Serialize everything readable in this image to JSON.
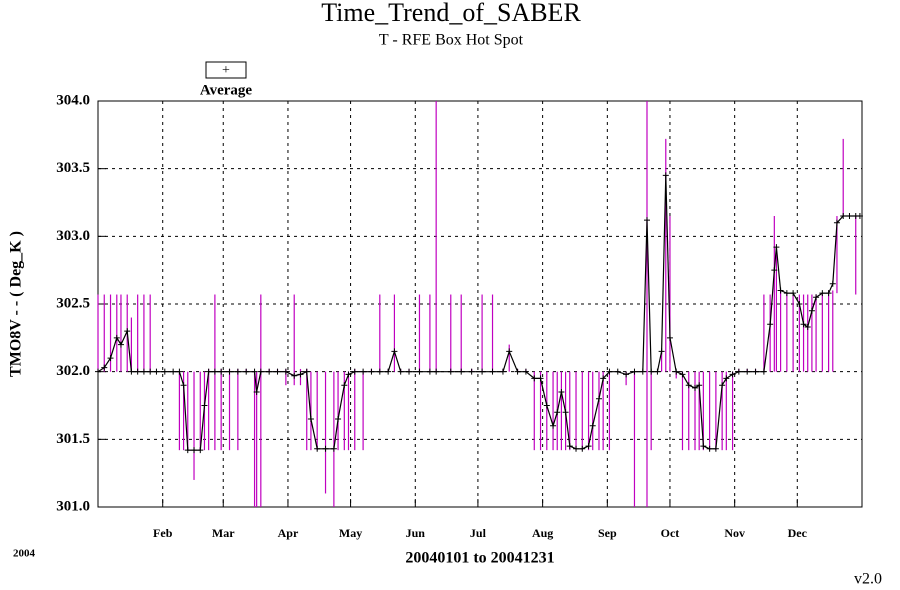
{
  "chart_data": {
    "type": "trend",
    "title": "Time_Trend_of_SABER",
    "subtitle": "T - RFE Box Hot Spot",
    "y_label": "TMO8V  - - ( Deg_K )",
    "x_label": "20040101 to 20041231",
    "year_note": "2004",
    "version": "v2.0",
    "xlim": [
      1,
      367
    ],
    "ylim": [
      301,
      304
    ],
    "grid": true,
    "xticks": [
      {
        "value": 32,
        "label": "Feb"
      },
      {
        "value": 61,
        "label": "Mar"
      },
      {
        "value": 92,
        "label": "Apr"
      },
      {
        "value": 122,
        "label": "May"
      },
      {
        "value": 153,
        "label": "Jun"
      },
      {
        "value": 183,
        "label": "Jul"
      },
      {
        "value": 214,
        "label": "Aug"
      },
      {
        "value": 245,
        "label": "Sep"
      },
      {
        "value": 275,
        "label": "Oct"
      },
      {
        "value": 306,
        "label": "Nov"
      },
      {
        "value": 336,
        "label": "Dec"
      }
    ],
    "yticks": [
      {
        "value": 301,
        "label": "301.0"
      },
      {
        "value": 301.5,
        "label": "301.5"
      },
      {
        "value": 302,
        "label": "302.0"
      },
      {
        "value": 302.5,
        "label": "302.5"
      },
      {
        "value": 303,
        "label": "303.0"
      },
      {
        "value": 303.5,
        "label": "303.5"
      },
      {
        "value": 304,
        "label": "304.0"
      }
    ],
    "x": [
      1,
      4,
      7,
      10,
      12,
      15,
      17,
      20,
      23,
      26,
      29,
      33,
      37,
      40,
      42,
      44,
      47,
      50,
      52,
      54,
      57,
      60,
      64,
      68,
      72,
      76,
      77,
      79,
      83,
      87,
      91,
      95,
      98,
      101,
      103,
      106,
      110,
      114,
      116,
      119,
      121,
      124,
      128,
      132,
      136,
      140,
      143,
      146,
      150,
      155,
      160,
      163,
      170,
      175,
      180,
      185,
      190,
      195,
      198,
      202,
      206,
      210,
      213,
      216,
      219,
      221,
      223,
      225,
      227,
      230,
      233,
      236,
      238,
      241,
      243,
      246,
      250,
      254,
      258,
      262,
      264,
      266,
      269,
      271,
      273,
      275,
      278,
      281,
      284,
      287,
      289,
      291,
      294,
      297,
      300,
      302,
      305,
      308,
      312,
      316,
      320,
      323,
      325,
      326,
      328,
      331,
      334,
      337,
      339,
      341,
      343,
      345,
      348,
      351,
      353,
      355,
      358,
      361,
      364,
      366
    ],
    "series": [
      {
        "name": "Average",
        "color": "#000000",
        "range_color": "#c000c0",
        "values": [
          302.0,
          302.03,
          302.1,
          302.25,
          302.2,
          302.3,
          302.0,
          302.0,
          302.0,
          302.0,
          302.0,
          302.0,
          302.0,
          302.0,
          301.9,
          301.42,
          301.42,
          301.42,
          301.75,
          302.0,
          302.0,
          302.0,
          302.0,
          302.0,
          302.0,
          302.0,
          301.85,
          302.0,
          302.0,
          302.0,
          302.0,
          301.97,
          301.98,
          302.0,
          301.65,
          301.43,
          301.43,
          301.43,
          301.65,
          301.9,
          301.98,
          302.0,
          302.0,
          302.0,
          302.0,
          302.0,
          302.15,
          302.0,
          302.0,
          302.0,
          302.0,
          302.0,
          302.0,
          302.0,
          302.0,
          302.0,
          302.0,
          302.0,
          302.15,
          302.0,
          302.0,
          301.95,
          301.95,
          301.75,
          301.6,
          301.7,
          301.85,
          301.7,
          301.45,
          301.43,
          301.43,
          301.45,
          301.6,
          301.8,
          301.95,
          302.0,
          302.0,
          301.98,
          302.0,
          302.0,
          303.12,
          302.0,
          302.0,
          302.15,
          303.45,
          302.25,
          302.0,
          301.98,
          301.9,
          301.88,
          301.9,
          301.45,
          301.43,
          301.43,
          301.9,
          301.95,
          301.98,
          302.0,
          302.0,
          302.0,
          302.0,
          302.35,
          302.75,
          302.92,
          302.6,
          302.58,
          302.58,
          302.5,
          302.35,
          302.33,
          302.45,
          302.55,
          302.58,
          302.58,
          302.65,
          303.1,
          303.15,
          303.15,
          303.15,
          303.15
        ],
        "low": [
          302.0,
          302.0,
          302.0,
          302.0,
          302.0,
          302.0,
          302.0,
          302.0,
          302.0,
          302.0,
          302.0,
          302.0,
          302.0,
          301.42,
          301.42,
          301.42,
          301.2,
          301.42,
          301.42,
          301.42,
          301.42,
          301.42,
          301.42,
          301.42,
          302.0,
          301.0,
          301.0,
          301.0,
          302.0,
          302.0,
          301.9,
          301.9,
          301.9,
          301.42,
          301.42,
          301.42,
          301.1,
          301.0,
          301.42,
          301.42,
          301.42,
          301.42,
          301.42,
          302.0,
          302.0,
          302.0,
          302.0,
          302.0,
          302.0,
          302.0,
          302.0,
          302.0,
          302.0,
          302.0,
          302.0,
          302.0,
          302.0,
          302.0,
          302.0,
          302.0,
          302.0,
          301.42,
          301.42,
          301.42,
          301.42,
          301.42,
          301.42,
          301.42,
          301.42,
          301.42,
          301.42,
          301.42,
          301.42,
          301.42,
          301.42,
          301.42,
          302.0,
          301.9,
          301.0,
          302.0,
          301.0,
          301.42,
          302.0,
          302.0,
          302.0,
          302.0,
          301.95,
          301.42,
          301.42,
          301.42,
          301.42,
          301.42,
          301.42,
          301.42,
          301.42,
          301.42,
          301.42,
          302.0,
          302.0,
          302.0,
          302.0,
          302.0,
          302.0,
          302.0,
          302.0,
          302.0,
          302.0,
          302.0,
          302.0,
          302.0,
          302.0,
          302.0,
          302.0,
          302.0,
          302.0,
          302.58,
          303.15,
          303.15,
          302.57,
          303.15
        ],
        "high": [
          302.57,
          302.57,
          302.57,
          302.57,
          302.57,
          302.57,
          302.4,
          302.57,
          302.57,
          302.57,
          302.0,
          302.0,
          302.0,
          302.0,
          302.0,
          302.0,
          302.0,
          302.0,
          302.0,
          302.02,
          302.57,
          302.02,
          302.02,
          302.02,
          302.02,
          302.0,
          302.0,
          302.57,
          302.02,
          302.02,
          302.02,
          302.57,
          302.02,
          302.02,
          302.0,
          302.0,
          302.0,
          302.0,
          302.0,
          302.0,
          302.0,
          302.02,
          302.0,
          302.02,
          302.57,
          302.02,
          302.57,
          302.02,
          302.02,
          302.57,
          302.57,
          304.0,
          302.57,
          302.57,
          302.02,
          302.57,
          302.57,
          302.02,
          302.2,
          302.02,
          302.02,
          302.0,
          302.0,
          302.0,
          302.0,
          302.0,
          302.0,
          302.0,
          302.0,
          302.0,
          302.0,
          302.0,
          302.0,
          302.0,
          302.0,
          302.0,
          302.0,
          302.0,
          302.0,
          302.0,
          304.0,
          302.0,
          302.0,
          302.15,
          303.72,
          303.15,
          302.0,
          302.0,
          302.0,
          302.0,
          302.0,
          302.0,
          302.0,
          302.0,
          302.0,
          302.0,
          302.0,
          302.02,
          302.02,
          302.02,
          302.57,
          302.57,
          303.15,
          302.92,
          302.6,
          302.58,
          302.57,
          302.57,
          302.57,
          302.57,
          302.57,
          302.57,
          302.57,
          302.6,
          302.6,
          303.15,
          303.72,
          303.15,
          303.15,
          303.15
        ]
      }
    ]
  }
}
